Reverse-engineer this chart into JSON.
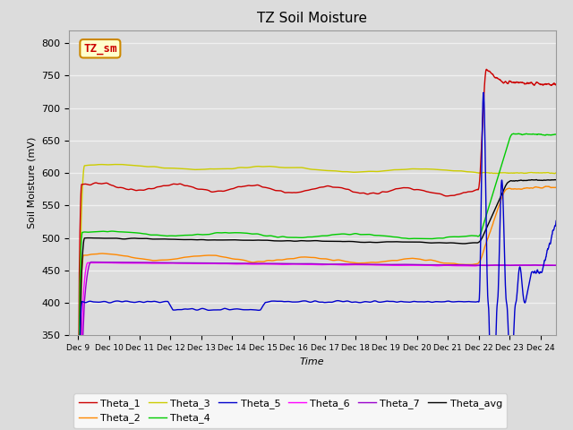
{
  "title": "TZ Soil Moisture",
  "xlabel": "Time",
  "ylabel": "Soil Moisture (mV)",
  "ylim": [
    350,
    820
  ],
  "yticks": [
    350,
    400,
    450,
    500,
    550,
    600,
    650,
    700,
    750,
    800
  ],
  "background_color": "#dcdcdc",
  "grid_color": "#f0f0f0",
  "series_colors": {
    "Theta_1": "#cc0000",
    "Theta_2": "#ff8800",
    "Theta_3": "#cccc00",
    "Theta_4": "#00cc00",
    "Theta_5": "#0000cc",
    "Theta_6": "#ff00ff",
    "Theta_7": "#9900cc",
    "Theta_avg": "#000000"
  },
  "annotation_box": {
    "text": "TZ_sm",
    "bg": "#ffffcc",
    "border": "#cc8800",
    "text_color": "#cc0000",
    "fontsize": 9
  },
  "legend_fontsize": 8,
  "title_fontsize": 11,
  "figsize": [
    6.4,
    4.8
  ],
  "dpi": 100
}
